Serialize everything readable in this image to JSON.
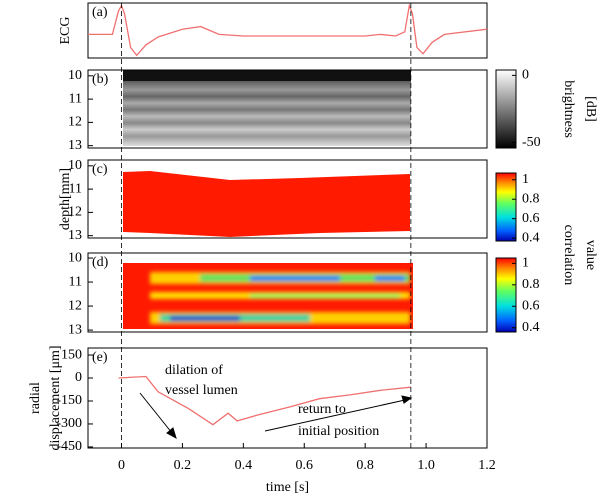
{
  "chart_data": [
    {
      "type": "line",
      "label": "(a)",
      "ylabel": "ECG",
      "color": "#f07070",
      "x": [
        -0.11,
        -0.03,
        -0.01,
        0,
        0.01,
        0.03,
        0.05,
        0.08,
        0.12,
        0.2,
        0.26,
        0.32,
        0.4,
        0.6,
        0.8,
        0.85,
        0.9,
        0.93,
        0.945,
        0.955,
        0.97,
        0.99,
        1.02,
        1.06,
        1.2
      ],
      "values": [
        0.45,
        0.45,
        0.9,
        1.0,
        0.85,
        0.2,
        0.05,
        0.25,
        0.4,
        0.55,
        0.6,
        0.45,
        0.42,
        0.42,
        0.42,
        0.45,
        0.42,
        0.5,
        1.0,
        0.85,
        0.2,
        0.08,
        0.3,
        0.45,
        0.55
      ],
      "ylim": [
        0,
        1.05
      ]
    },
    {
      "type": "image",
      "label": "(b)",
      "ylim": [
        13.1,
        9.75
      ],
      "yticks": [
        10,
        11,
        12,
        13
      ],
      "colorbar": {
        "label_lines": [
          "brightness",
          "[dB]"
        ],
        "scale": "gray",
        "lim": [
          -54,
          4
        ],
        "ticks": [
          0,
          -50
        ]
      }
    },
    {
      "type": "image",
      "label": "(c)",
      "ylabel": "depth[mm]",
      "ylim": [
        13.1,
        9.75
      ],
      "yticks": [
        10,
        11,
        12,
        13
      ],
      "colorbar": {
        "label_lines": [
          "correlation",
          "value"
        ],
        "scale": "jet",
        "lim": [
          0.37,
          1.07
        ],
        "ticks": [
          1,
          0.8,
          0.6,
          0.4
        ]
      }
    },
    {
      "type": "image",
      "label": "(d)",
      "ylim": [
        13.08,
        9.79
      ],
      "yticks": [
        10,
        11,
        12,
        13
      ],
      "colorbar": {
        "scale": "jet",
        "lim": [
          0.36,
          1.05
        ],
        "ticks": [
          1,
          0.8,
          0.6,
          0.4
        ]
      }
    },
    {
      "type": "line",
      "label": "(e)",
      "ylabel_lines": [
        "radial",
        "displacement  [μm]"
      ],
      "xlabel": "time [s]",
      "color": "#f07070",
      "x": [
        -0.01,
        0.08,
        0.12,
        0.17,
        0.22,
        0.3,
        0.35,
        0.38,
        0.45,
        0.55,
        0.65,
        0.75,
        0.85,
        0.95
      ],
      "values": [
        0,
        10,
        -90,
        -145,
        -200,
        -305,
        -230,
        -280,
        -240,
        -190,
        -135,
        -110,
        -80,
        -60
      ],
      "xlim": [
        -0.11,
        1.2
      ],
      "xticks": [
        0,
        0.2,
        0.4,
        0.6,
        0.8,
        {
          "value": 1,
          "label": "1.0"
        },
        1.2
      ],
      "ylim": [
        -457,
        196
      ],
      "yticks": [
        150,
        0,
        -150,
        -300,
        -450
      ],
      "vlines": [
        0,
        0.95
      ],
      "annotations": [
        "dilation of",
        "vessel lumen",
        "return to",
        "initial position"
      ]
    }
  ]
}
